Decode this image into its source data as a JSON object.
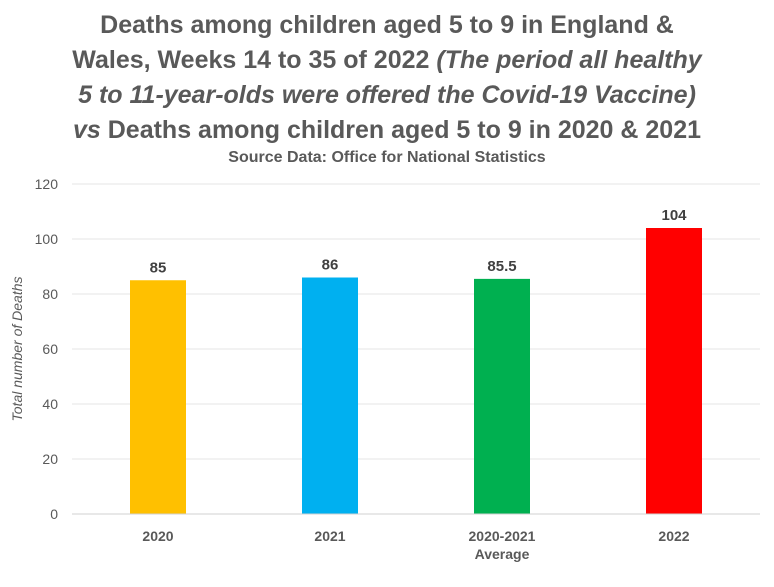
{
  "chart_data": {
    "type": "bar",
    "title": {
      "line1": "Deaths among children aged 5 to 9 in England &",
      "line2_plain": "Wales, Weeks 14 to 35 of 2022 ",
      "line2_italic": "(The period all healthy",
      "line3_italic": "5 to 11-year-olds were offered the Covid-19 Vaccine)",
      "line4_italic": "vs",
      "line4_plain": " Deaths among children aged 5 to 9 in 2020 & 2021"
    },
    "subtitle": "Source Data: Office for National Statistics",
    "ylabel": "Total number of Deaths",
    "xlabel": "",
    "ylim": [
      0,
      120
    ],
    "yticks": [
      0,
      20,
      40,
      60,
      80,
      100,
      120
    ],
    "grid": true,
    "categories": [
      "2020",
      "2021",
      "2020-2021 Average",
      "2022"
    ],
    "category_lines": [
      [
        "2020"
      ],
      [
        "2021"
      ],
      [
        "2020-2021",
        "Average"
      ],
      [
        "2022"
      ]
    ],
    "values": [
      85,
      86,
      85.5,
      104
    ],
    "data_labels": [
      "85",
      "86",
      "85.5",
      "104"
    ],
    "colors": [
      "#FFC000",
      "#00B0F0",
      "#00B050",
      "#FF0000"
    ]
  }
}
